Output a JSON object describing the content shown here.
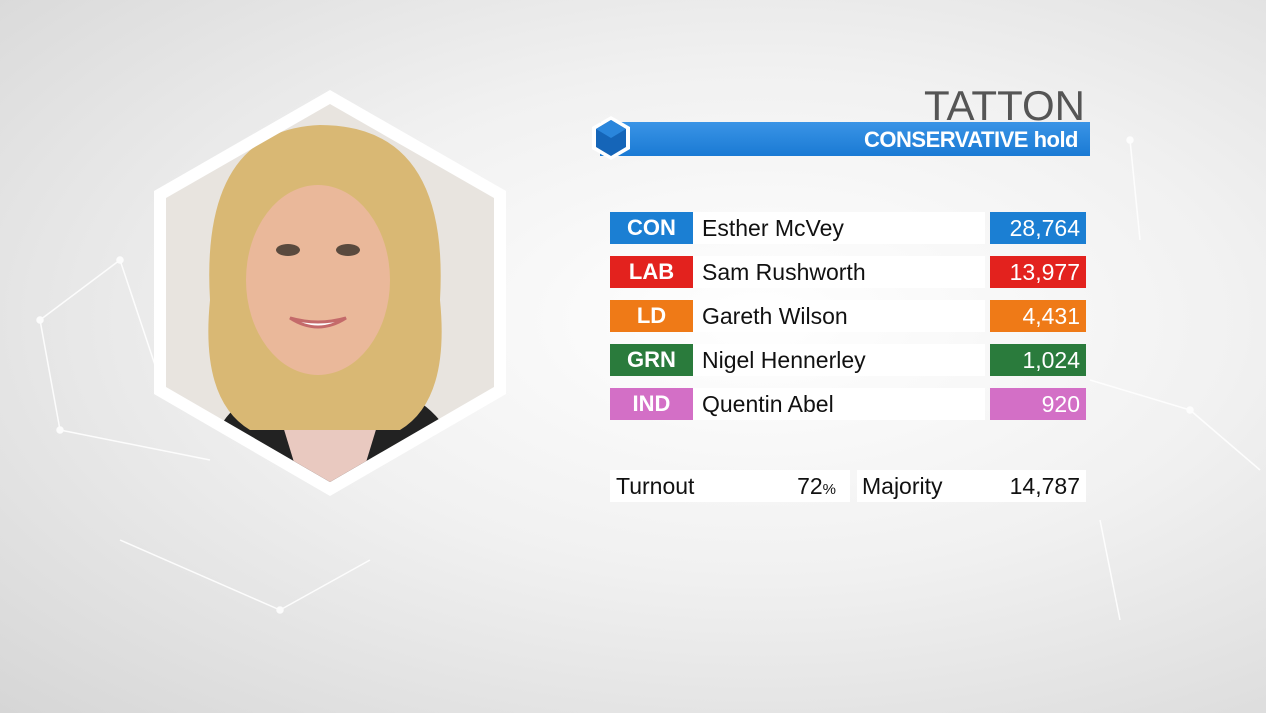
{
  "header": {
    "title": "TATTON",
    "subtitle": "CONSERVATIVE hold",
    "color": "#1a7ad4"
  },
  "results": [
    {
      "party": "CON",
      "candidate": "Esther McVey",
      "votes": "28,764",
      "color": "#1b7fd3"
    },
    {
      "party": "LAB",
      "candidate": "Sam Rushworth",
      "votes": "13,977",
      "color": "#e3221e"
    },
    {
      "party": "LD",
      "candidate": "Gareth Wilson",
      "votes": "4,431",
      "color": "#ef7a17"
    },
    {
      "party": "GRN",
      "candidate": "Nigel Hennerley",
      "votes": "1,024",
      "color": "#2a7b3c"
    },
    {
      "party": "IND",
      "candidate": "Quentin Abel",
      "votes": "920",
      "color": "#d36fc6"
    }
  ],
  "turnout": {
    "label": "Turnout",
    "value": "72",
    "unit": "%"
  },
  "majority": {
    "label": "Majority",
    "value": "14,787"
  }
}
